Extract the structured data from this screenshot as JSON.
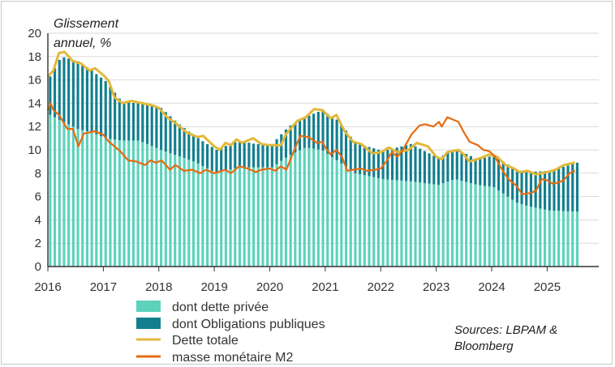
{
  "chart_data": {
    "type": "bar",
    "title": "",
    "ylabel": "Glissement annuel, %",
    "xlabel": "",
    "ylim": [
      0,
      20
    ],
    "yticks": [
      "0",
      "2",
      "4",
      "6",
      "8",
      "10",
      "12",
      "14",
      "16",
      "18",
      "20"
    ],
    "xtick_labels": [
      "2016",
      "2017",
      "2018",
      "2019",
      "2020",
      "2021",
      "2022",
      "2023",
      "2024",
      "2025"
    ],
    "x_range": [
      2016.0,
      2025.5
    ],
    "frequency": "monthly",
    "start": "2016-01",
    "series": [
      {
        "name": "dont dette privée",
        "kind": "stacked-bar",
        "color": "#5cd2bc",
        "anchors": [
          [
            2016.0,
            13.0
          ],
          [
            2016.2,
            12.5
          ],
          [
            2016.5,
            11.8
          ],
          [
            2016.75,
            11.5
          ],
          [
            2017.0,
            11.0
          ],
          [
            2017.3,
            10.8
          ],
          [
            2017.6,
            10.8
          ],
          [
            2018.0,
            10.0
          ],
          [
            2018.3,
            9.5
          ],
          [
            2018.6,
            9.0
          ],
          [
            2019.0,
            8.0
          ],
          [
            2019.4,
            8.5
          ],
          [
            2019.7,
            8.5
          ],
          [
            2020.0,
            8.5
          ],
          [
            2020.3,
            9.5
          ],
          [
            2020.6,
            10.2
          ],
          [
            2020.9,
            10.0
          ],
          [
            2021.2,
            9.0
          ],
          [
            2021.5,
            8.0
          ],
          [
            2022.0,
            7.5
          ],
          [
            2022.5,
            7.3
          ],
          [
            2023.0,
            7.0
          ],
          [
            2023.3,
            7.5
          ],
          [
            2023.7,
            7.0
          ],
          [
            2024.0,
            6.8
          ],
          [
            2024.4,
            5.5
          ],
          [
            2024.6,
            5.2
          ],
          [
            2025.0,
            4.8
          ],
          [
            2025.5,
            4.7
          ]
        ],
        "values": []
      },
      {
        "name": "dont Obligations publiques",
        "kind": "stacked-bar",
        "color": "#127f8e",
        "anchors": [
          [
            2016.0,
            3.3
          ],
          [
            2016.2,
            5.5
          ],
          [
            2016.5,
            5.8
          ],
          [
            2016.75,
            5.3
          ],
          [
            2017.0,
            4.9
          ],
          [
            2017.3,
            3.3
          ],
          [
            2017.6,
            3.2
          ],
          [
            2018.0,
            3.6
          ],
          [
            2018.3,
            2.8
          ],
          [
            2018.6,
            2.2
          ],
          [
            2019.0,
            2.0
          ],
          [
            2019.4,
            2.3
          ],
          [
            2019.7,
            2.0
          ],
          [
            2020.0,
            2.0
          ],
          [
            2020.3,
            2.5
          ],
          [
            2020.6,
            2.6
          ],
          [
            2020.9,
            3.4
          ],
          [
            2021.2,
            3.5
          ],
          [
            2021.5,
            2.6
          ],
          [
            2022.0,
            2.4
          ],
          [
            2022.5,
            3.2
          ],
          [
            2023.0,
            2.3
          ],
          [
            2023.3,
            2.6
          ],
          [
            2023.7,
            2.2
          ],
          [
            2024.0,
            2.7
          ],
          [
            2024.4,
            2.8
          ],
          [
            2024.6,
            2.9
          ],
          [
            2025.0,
            3.4
          ],
          [
            2025.5,
            4.2
          ]
        ],
        "values": []
      },
      {
        "name": "Dette totale",
        "kind": "line",
        "color": "#e3b83a",
        "anchors": [
          [
            2016.0,
            16.3
          ],
          [
            2016.1,
            16.8
          ],
          [
            2016.2,
            18.3
          ],
          [
            2016.3,
            18.4
          ],
          [
            2016.45,
            17.6
          ],
          [
            2016.6,
            17.4
          ],
          [
            2016.75,
            16.8
          ],
          [
            2016.85,
            17.0
          ],
          [
            2017.0,
            16.4
          ],
          [
            2017.1,
            15.9
          ],
          [
            2017.2,
            14.5
          ],
          [
            2017.35,
            14.0
          ],
          [
            2017.5,
            14.2
          ],
          [
            2017.7,
            14.0
          ],
          [
            2017.9,
            13.8
          ],
          [
            2018.0,
            13.6
          ],
          [
            2018.15,
            12.8
          ],
          [
            2018.3,
            12.3
          ],
          [
            2018.5,
            11.5
          ],
          [
            2018.7,
            11.1
          ],
          [
            2018.8,
            11.2
          ],
          [
            2019.0,
            10.3
          ],
          [
            2019.1,
            10.0
          ],
          [
            2019.2,
            10.6
          ],
          [
            2019.3,
            10.4
          ],
          [
            2019.4,
            10.9
          ],
          [
            2019.5,
            10.6
          ],
          [
            2019.7,
            11.0
          ],
          [
            2019.85,
            10.5
          ],
          [
            2020.0,
            10.4
          ],
          [
            2020.2,
            10.4
          ],
          [
            2020.3,
            11.4
          ],
          [
            2020.5,
            12.5
          ],
          [
            2020.65,
            12.8
          ],
          [
            2020.8,
            13.5
          ],
          [
            2020.95,
            13.4
          ],
          [
            2021.1,
            12.7
          ],
          [
            2021.2,
            13.0
          ],
          [
            2021.35,
            11.6
          ],
          [
            2021.5,
            10.7
          ],
          [
            2021.65,
            10.5
          ],
          [
            2021.85,
            9.7
          ],
          [
            2022.0,
            9.8
          ],
          [
            2022.15,
            10.2
          ],
          [
            2022.3,
            9.8
          ],
          [
            2022.5,
            10.0
          ],
          [
            2022.65,
            10.6
          ],
          [
            2022.85,
            10.3
          ],
          [
            2023.0,
            9.4
          ],
          [
            2023.1,
            9.2
          ],
          [
            2023.2,
            9.8
          ],
          [
            2023.4,
            10.0
          ],
          [
            2023.5,
            9.6
          ],
          [
            2023.6,
            9.0
          ],
          [
            2023.8,
            9.3
          ],
          [
            2023.95,
            9.6
          ],
          [
            2024.1,
            9.4
          ],
          [
            2024.25,
            8.7
          ],
          [
            2024.4,
            8.4
          ],
          [
            2024.5,
            8.1
          ],
          [
            2024.65,
            8.2
          ],
          [
            2024.8,
            7.9
          ],
          [
            2024.9,
            8.0
          ],
          [
            2025.0,
            8.1
          ],
          [
            2025.15,
            8.3
          ],
          [
            2025.3,
            8.7
          ],
          [
            2025.5,
            8.9
          ]
        ]
      },
      {
        "name": "masse monétaire M2",
        "kind": "line",
        "color": "#e66b10",
        "anchors": [
          [
            2016.0,
            13.4
          ],
          [
            2016.05,
            14.0
          ],
          [
            2016.1,
            13.4
          ],
          [
            2016.2,
            13.0
          ],
          [
            2016.35,
            11.8
          ],
          [
            2016.45,
            11.8
          ],
          [
            2016.55,
            10.3
          ],
          [
            2016.65,
            11.4
          ],
          [
            2016.85,
            11.6
          ],
          [
            2017.0,
            11.3
          ],
          [
            2017.1,
            10.7
          ],
          [
            2017.3,
            9.9
          ],
          [
            2017.45,
            9.1
          ],
          [
            2017.6,
            9.0
          ],
          [
            2017.75,
            8.7
          ],
          [
            2017.85,
            9.1
          ],
          [
            2017.95,
            8.9
          ],
          [
            2018.05,
            9.1
          ],
          [
            2018.2,
            8.3
          ],
          [
            2018.3,
            8.7
          ],
          [
            2018.45,
            8.2
          ],
          [
            2018.6,
            8.3
          ],
          [
            2018.75,
            8.0
          ],
          [
            2018.85,
            8.3
          ],
          [
            2019.0,
            8.0
          ],
          [
            2019.2,
            8.3
          ],
          [
            2019.3,
            8.0
          ],
          [
            2019.45,
            8.6
          ],
          [
            2019.6,
            8.4
          ],
          [
            2019.75,
            8.1
          ],
          [
            2019.85,
            8.3
          ],
          [
            2020.0,
            8.4
          ],
          [
            2020.1,
            8.2
          ],
          [
            2020.2,
            8.6
          ],
          [
            2020.3,
            8.3
          ],
          [
            2020.4,
            9.5
          ],
          [
            2020.55,
            11.2
          ],
          [
            2020.7,
            11.1
          ],
          [
            2020.85,
            10.6
          ],
          [
            2020.95,
            10.7
          ],
          [
            2021.0,
            10.2
          ],
          [
            2021.1,
            9.6
          ],
          [
            2021.2,
            10.0
          ],
          [
            2021.3,
            9.4
          ],
          [
            2021.4,
            8.2
          ],
          [
            2021.5,
            8.3
          ],
          [
            2021.65,
            8.4
          ],
          [
            2021.75,
            8.2
          ],
          [
            2021.9,
            8.3
          ],
          [
            2022.0,
            8.4
          ],
          [
            2022.1,
            9.0
          ],
          [
            2022.2,
            9.8
          ],
          [
            2022.3,
            9.4
          ],
          [
            2022.4,
            10.0
          ],
          [
            2022.55,
            11.3
          ],
          [
            2022.7,
            12.1
          ],
          [
            2022.8,
            12.2
          ],
          [
            2022.95,
            12.0
          ],
          [
            2023.05,
            12.4
          ],
          [
            2023.1,
            12.0
          ],
          [
            2023.2,
            12.8
          ],
          [
            2023.3,
            12.6
          ],
          [
            2023.4,
            12.4
          ],
          [
            2023.5,
            11.5
          ],
          [
            2023.6,
            10.7
          ],
          [
            2023.75,
            10.4
          ],
          [
            2023.85,
            10.0
          ],
          [
            2023.95,
            9.9
          ],
          [
            2024.05,
            9.5
          ],
          [
            2024.15,
            8.6
          ],
          [
            2024.3,
            7.5
          ],
          [
            2024.45,
            6.9
          ],
          [
            2024.55,
            6.2
          ],
          [
            2024.7,
            6.3
          ],
          [
            2024.8,
            6.5
          ],
          [
            2024.9,
            7.5
          ],
          [
            2025.0,
            7.4
          ],
          [
            2025.1,
            7.1
          ],
          [
            2025.2,
            7.2
          ],
          [
            2025.3,
            7.4
          ],
          [
            2025.4,
            8.0
          ],
          [
            2025.5,
            8.2
          ]
        ]
      }
    ],
    "legend_position": "bottom-left",
    "source": "Sources: LBPAM & Bloomberg"
  },
  "axis_label_line1": "Glissement",
  "axis_label_line2": "annuel, %",
  "legend": [
    {
      "label": "dont dette privée",
      "swatch": "box",
      "color": "#5cd2bc"
    },
    {
      "label": "dont Obligations publiques",
      "swatch": "box",
      "color": "#127f8e"
    },
    {
      "label": "Dette totale",
      "swatch": "line",
      "color": "#e3b83a"
    },
    {
      "label": "masse monétaire M2",
      "swatch": "line",
      "color": "#e66b10"
    }
  ],
  "source_line1": "Sources: LBPAM &",
  "source_line2": "Bloomberg"
}
